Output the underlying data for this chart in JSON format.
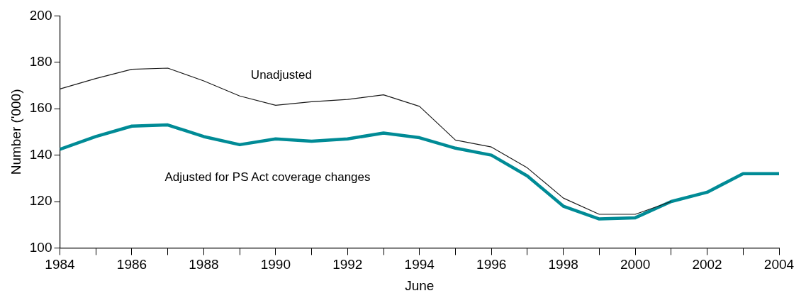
{
  "chart_data": {
    "type": "line",
    "xlabel": "June",
    "ylabel": "Number ('000)",
    "x": [
      1984,
      1985,
      1986,
      1987,
      1988,
      1989,
      1990,
      1991,
      1992,
      1993,
      1994,
      1995,
      1996,
      1997,
      1998,
      1999,
      2000,
      2001,
      2002,
      2003,
      2004
    ],
    "series": [
      {
        "name": "Unadjusted",
        "color": "#1a1a1a",
        "values": [
          168.5,
          173,
          177,
          177.5,
          172,
          165.5,
          161.5,
          163,
          164,
          166,
          161,
          146.5,
          143.5,
          134.5,
          121.5,
          114.5,
          114.5,
          120,
          null,
          null,
          null
        ]
      },
      {
        "name": "Adjusted for PS Act coverage changes",
        "color": "#008b96",
        "values": [
          142.5,
          148,
          152.5,
          153,
          148,
          144.5,
          147,
          146,
          147,
          149.5,
          147.5,
          143,
          140,
          131,
          118,
          112.5,
          113,
          120,
          124,
          132,
          132
        ]
      }
    ],
    "xlim": [
      1984,
      2004
    ],
    "xticks": [
      1984,
      {
        "value": 1985,
        "label": null
      },
      1986,
      {
        "value": 1987,
        "label": null
      },
      1988,
      {
        "value": 1989,
        "label": null
      },
      1990,
      {
        "value": 1991,
        "label": null
      },
      1992,
      {
        "value": 1993,
        "label": null
      },
      1994,
      {
        "value": 1995,
        "label": null
      },
      1996,
      {
        "value": 1997,
        "label": null
      },
      1998,
      {
        "value": 1999,
        "label": null
      },
      2000,
      {
        "value": 2001,
        "label": null
      },
      2002,
      {
        "value": 2003,
        "label": null
      },
      2004
    ],
    "ylim": [
      100,
      200
    ],
    "yticks": [
      100,
      120,
      140,
      160,
      180,
      200
    ],
    "grid": false,
    "legend": false,
    "marker": "none",
    "line_style": "solid"
  }
}
